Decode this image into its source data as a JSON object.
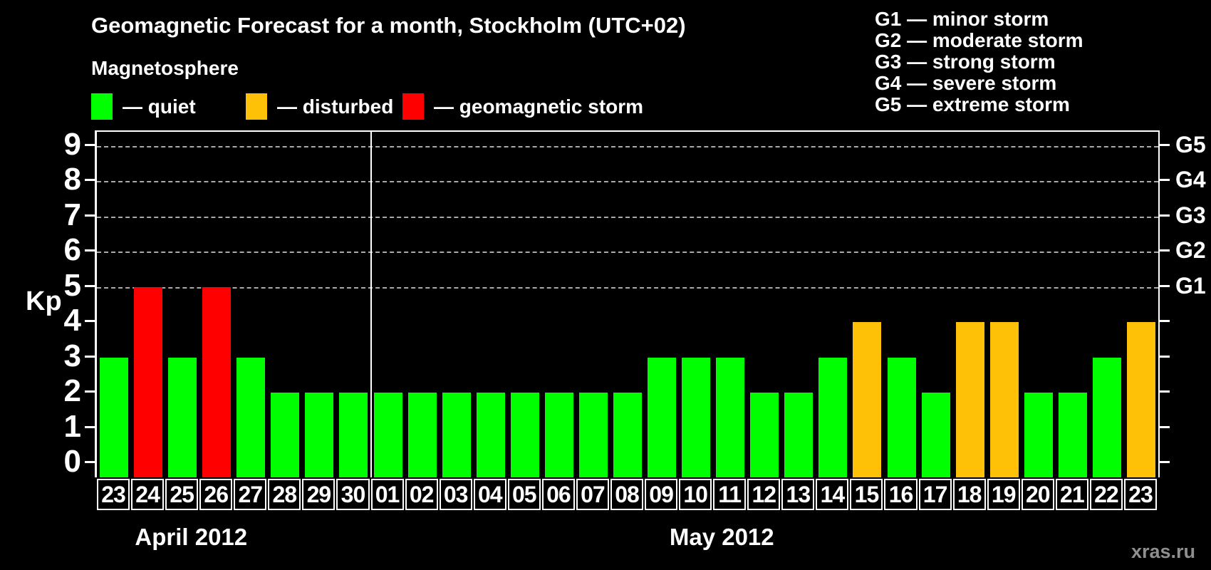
{
  "title": "Geomagnetic Forecast for a month, Stockholm (UTC+02)",
  "subtitle": "Magnetosphere",
  "legend": [
    {
      "label": "— quiet",
      "status": "quiet",
      "color": "#00ff00"
    },
    {
      "label": "— disturbed",
      "status": "disturbed",
      "color": "#ffc107"
    },
    {
      "label": "— geomagnetic storm",
      "status": "storm",
      "color": "#ff0000"
    }
  ],
  "g_scale_legend": [
    "G1 — minor storm",
    "G2 — moderate storm",
    "G3 — strong storm",
    "G4 — severe storm",
    "G5 — extreme storm"
  ],
  "watermark": "xras.ru",
  "chart_data": {
    "type": "bar",
    "title": "Geomagnetic Forecast for a month, Stockholm (UTC+02)",
    "ylabel": "Kp",
    "ylim": [
      0,
      9
    ],
    "grid": "dashed horizontal lines at Kp 5-9 only",
    "legend_position": "top",
    "left_ticks": [
      0,
      1,
      2,
      3,
      4,
      5,
      6,
      7,
      8,
      9
    ],
    "right_ticks": [
      {
        "kp": 5,
        "label": "G1"
      },
      {
        "kp": 6,
        "label": "G2"
      },
      {
        "kp": 7,
        "label": "G3"
      },
      {
        "kp": 8,
        "label": "G4"
      },
      {
        "kp": 9,
        "label": "G5"
      }
    ],
    "gridlines_at": [
      5,
      6,
      7,
      8,
      9
    ],
    "status_colors": {
      "quiet": "#00ff00",
      "disturbed": "#ffc107",
      "storm": "#ff0000"
    },
    "groups": [
      {
        "label": "April 2012",
        "days": [
          {
            "day": "23",
            "kp": 3,
            "status": "quiet"
          },
          {
            "day": "24",
            "kp": 5,
            "status": "storm"
          },
          {
            "day": "25",
            "kp": 3,
            "status": "quiet"
          },
          {
            "day": "26",
            "kp": 5,
            "status": "storm"
          },
          {
            "day": "27",
            "kp": 3,
            "status": "quiet"
          },
          {
            "day": "28",
            "kp": 2,
            "status": "quiet"
          },
          {
            "day": "29",
            "kp": 2,
            "status": "quiet"
          },
          {
            "day": "30",
            "kp": 2,
            "status": "quiet"
          }
        ]
      },
      {
        "label": "May 2012",
        "days": [
          {
            "day": "01",
            "kp": 2,
            "status": "quiet"
          },
          {
            "day": "02",
            "kp": 2,
            "status": "quiet"
          },
          {
            "day": "03",
            "kp": 2,
            "status": "quiet"
          },
          {
            "day": "04",
            "kp": 2,
            "status": "quiet"
          },
          {
            "day": "05",
            "kp": 2,
            "status": "quiet"
          },
          {
            "day": "06",
            "kp": 2,
            "status": "quiet"
          },
          {
            "day": "07",
            "kp": 2,
            "status": "quiet"
          },
          {
            "day": "08",
            "kp": 2,
            "status": "quiet"
          },
          {
            "day": "09",
            "kp": 3,
            "status": "quiet"
          },
          {
            "day": "10",
            "kp": 3,
            "status": "quiet"
          },
          {
            "day": "11",
            "kp": 3,
            "status": "quiet"
          },
          {
            "day": "12",
            "kp": 2,
            "status": "quiet"
          },
          {
            "day": "13",
            "kp": 2,
            "status": "quiet"
          },
          {
            "day": "14",
            "kp": 3,
            "status": "quiet"
          },
          {
            "day": "15",
            "kp": 4,
            "status": "disturbed"
          },
          {
            "day": "16",
            "kp": 3,
            "status": "quiet"
          },
          {
            "day": "17",
            "kp": 2,
            "status": "quiet"
          },
          {
            "day": "18",
            "kp": 4,
            "status": "disturbed"
          },
          {
            "day": "19",
            "kp": 4,
            "status": "disturbed"
          },
          {
            "day": "20",
            "kp": 2,
            "status": "quiet"
          },
          {
            "day": "21",
            "kp": 2,
            "status": "quiet"
          },
          {
            "day": "22",
            "kp": 3,
            "status": "quiet"
          },
          {
            "day": "23",
            "kp": 4,
            "status": "disturbed"
          }
        ]
      }
    ]
  }
}
